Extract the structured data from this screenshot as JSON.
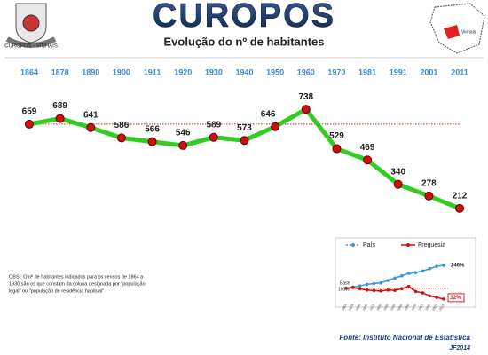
{
  "header": {
    "title": "CUROPOS",
    "crest_label": "CUROPOS - VINHAIS",
    "map_label": "Vinhais"
  },
  "chart_data": [
    {
      "type": "line",
      "title": "Evolução do nº de habitantes",
      "categories": [
        "1864",
        "1878",
        "1890",
        "1900",
        "1911",
        "1920",
        "1930",
        "1940",
        "1950",
        "1960",
        "1970",
        "1981",
        "1991",
        "2001",
        "2011"
      ],
      "series": [
        {
          "name": "Freguesia",
          "color": "#33cc22",
          "marker_color": "#cc1111",
          "values": [
            659,
            689,
            641,
            586,
            566,
            546,
            589,
            573,
            646,
            738,
            529,
            469,
            340,
            278,
            212
          ]
        }
      ],
      "ylim": [
        150,
        800
      ],
      "reference_line_color": "#dd2222"
    },
    {
      "type": "line",
      "categories": [
        "1864",
        "1878",
        "1890",
        "1900",
        "1911",
        "1920",
        "1930",
        "1940",
        "1950",
        "1960",
        "1970",
        "1981",
        "1991",
        "2001",
        "2011"
      ],
      "series": [
        {
          "name": "País",
          "color": "#3399dd",
          "values": [
            100,
            108,
            115,
            125,
            130,
            135,
            150,
            165,
            180,
            195,
            200,
            210,
            225,
            240,
            246
          ]
        },
        {
          "name": "Freguesia",
          "color": "#cc1111",
          "values": [
            100,
            105,
            97,
            89,
            86,
            83,
            89,
            87,
            98,
            112,
            80,
            71,
            52,
            42,
            32
          ]
        }
      ],
      "end_labels": [
        "246%",
        "32%"
      ],
      "base_label": "Base",
      "base_value_label": "100%",
      "ylim": [
        20,
        280
      ]
    }
  ],
  "notes": {
    "obs": [
      "OBS.: O nº de habitantes indicados para os censos de 1864 a",
      "1930 são os que constam da coluna designada por \"população",
      "legal\" ou \"população de residência habitual\""
    ],
    "source": "Fonte: Instituto Nacional de Estatística",
    "credit": "JF2014"
  }
}
